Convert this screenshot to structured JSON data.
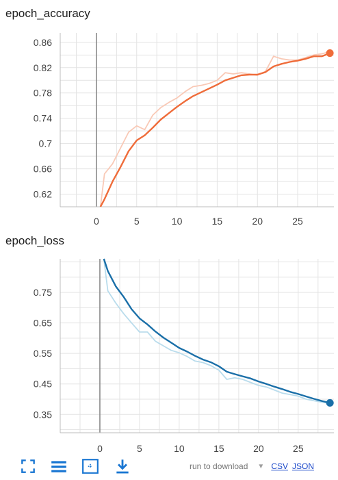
{
  "chart_data": [
    {
      "type": "line",
      "title": "epoch_accuracy",
      "xlabel": "",
      "ylabel": "",
      "xlim": [
        -4.5,
        29.5
      ],
      "ylim": [
        0.6,
        0.875
      ],
      "xticks": [
        0,
        5,
        10,
        15,
        20,
        25
      ],
      "yticks": [
        0.62,
        0.66,
        0.7,
        0.74,
        0.78,
        0.82,
        0.86
      ],
      "ytick_labels": [
        "0.62",
        "0.66",
        "0.7",
        "0.74",
        "0.78",
        "0.82",
        "0.86"
      ],
      "grid": true,
      "colors": {
        "smoothed": "#ef6c3a",
        "raw": "#f9c9b6"
      },
      "series": [
        {
          "role": "smoothed",
          "x": [
            0.5,
            1,
            2,
            3,
            4,
            5,
            6,
            7,
            8,
            9,
            10,
            11,
            12,
            13,
            14,
            15,
            16,
            17,
            18,
            19,
            20,
            21,
            22,
            23,
            24,
            25,
            26,
            27,
            28,
            29
          ],
          "values": [
            0.6,
            0.612,
            0.64,
            0.663,
            0.688,
            0.705,
            0.713,
            0.725,
            0.738,
            0.748,
            0.758,
            0.767,
            0.775,
            0.781,
            0.787,
            0.793,
            0.8,
            0.804,
            0.808,
            0.809,
            0.809,
            0.813,
            0.822,
            0.826,
            0.829,
            0.831,
            0.834,
            0.838,
            0.838,
            0.843
          ]
        },
        {
          "role": "raw",
          "x": [
            0.5,
            1,
            2,
            3,
            4,
            5,
            6,
            7,
            8,
            9,
            10,
            11,
            12,
            13,
            14,
            15,
            16,
            17,
            18,
            19,
            20,
            21,
            22,
            23,
            24,
            25,
            26,
            27,
            28,
            29
          ],
          "values": [
            0.6,
            0.652,
            0.668,
            0.693,
            0.718,
            0.728,
            0.722,
            0.745,
            0.757,
            0.765,
            0.772,
            0.782,
            0.79,
            0.792,
            0.795,
            0.8,
            0.812,
            0.81,
            0.812,
            0.81,
            0.808,
            0.814,
            0.838,
            0.834,
            0.832,
            0.832,
            0.836,
            0.84,
            0.842,
            0.845
          ]
        }
      ]
    },
    {
      "type": "line",
      "title": "epoch_loss",
      "xlabel": "",
      "ylabel": "",
      "xlim": [
        -5,
        29.5
      ],
      "ylim": [
        0.29,
        0.86
      ],
      "xticks": [
        0,
        5,
        10,
        15,
        20,
        25
      ],
      "yticks": [
        0.35,
        0.45,
        0.55,
        0.65,
        0.75
      ],
      "ytick_labels": [
        "0.35",
        "0.45",
        "0.55",
        "0.65",
        "0.75"
      ],
      "grid": true,
      "colors": {
        "smoothed": "#1a6fa8",
        "raw": "#b9dcec"
      },
      "series": [
        {
          "role": "smoothed",
          "x": [
            0.5,
            1,
            2,
            3,
            4,
            5,
            6,
            7,
            8,
            9,
            10,
            11,
            12,
            13,
            14,
            15,
            16,
            17,
            18,
            19,
            20,
            21,
            22,
            23,
            24,
            25,
            26,
            27,
            28,
            29
          ],
          "values": [
            0.86,
            0.82,
            0.77,
            0.735,
            0.695,
            0.665,
            0.645,
            0.622,
            0.602,
            0.585,
            0.568,
            0.556,
            0.542,
            0.53,
            0.521,
            0.508,
            0.49,
            0.482,
            0.475,
            0.468,
            0.458,
            0.45,
            0.441,
            0.433,
            0.424,
            0.417,
            0.409,
            0.401,
            0.394,
            0.388
          ]
        },
        {
          "role": "raw",
          "x": [
            0.5,
            1,
            2,
            3,
            4,
            5,
            6,
            7,
            8,
            9,
            10,
            11,
            12,
            13,
            14,
            15,
            16,
            17,
            18,
            19,
            20,
            21,
            22,
            23,
            24,
            25,
            26,
            27,
            28,
            29
          ],
          "values": [
            0.86,
            0.755,
            0.715,
            0.68,
            0.65,
            0.62,
            0.62,
            0.59,
            0.575,
            0.56,
            0.552,
            0.54,
            0.525,
            0.52,
            0.51,
            0.495,
            0.465,
            0.47,
            0.465,
            0.455,
            0.445,
            0.44,
            0.43,
            0.42,
            0.415,
            0.41,
            0.4,
            0.395,
            0.39,
            0.386
          ]
        }
      ]
    }
  ],
  "toolbar": {
    "icons": [
      "fullscreen-icon",
      "list-icon",
      "fit-domain-icon",
      "download-icon"
    ],
    "accent": "#1976d2",
    "download_label": "run to download",
    "csv_label": "CSV",
    "json_label": "JSON"
  }
}
